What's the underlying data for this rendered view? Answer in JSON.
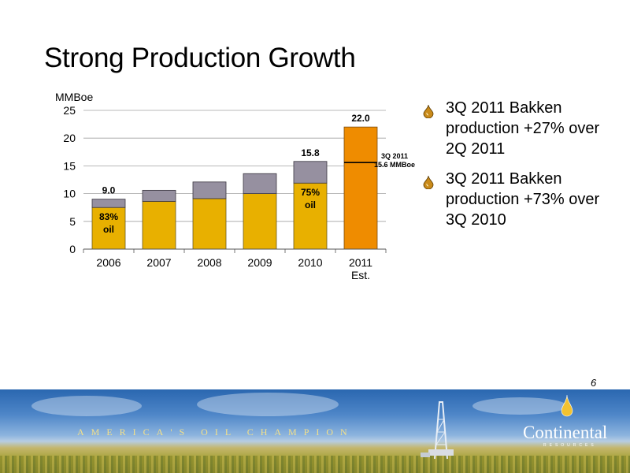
{
  "slide": {
    "title": "Strong Production Growth",
    "page_number": "6"
  },
  "bullets": [
    "3Q 2011 Bakken production +27% over 2Q 2011",
    "3Q 2011 Bakken production +73% over 3Q 2010"
  ],
  "banner": {
    "tagline": "AMERICA'S OIL CHAMPION",
    "logo_name": "Continental",
    "logo_subtitle": "RESOURCES"
  },
  "colors": {
    "oil": "#e8b000",
    "other": "#9690a0",
    "estimate": "#ef8c00",
    "gridline": "#a0a0a0",
    "bullet_drop": "#c98a1a"
  },
  "chart_data": {
    "type": "bar",
    "ylabel": "MMBoe",
    "ylim": [
      0,
      25
    ],
    "yticks": [
      0,
      5,
      10,
      15,
      20,
      25
    ],
    "categories": [
      "2006",
      "2007",
      "2008",
      "2009",
      "2010",
      "2011"
    ],
    "category_sublabels": [
      "",
      "",
      "",
      "",
      "",
      "Est."
    ],
    "grid": true,
    "series": [
      {
        "values": [
          7.5,
          8.6,
          9.1,
          10.0,
          11.9,
          null
        ]
      },
      {
        "values": [
          1.5,
          2.0,
          3.0,
          3.6,
          3.9,
          null
        ]
      }
    ],
    "estimate": {
      "category": "2011",
      "value": 22.0,
      "marker_value": 15.6
    },
    "data_labels": {
      "totals": [
        "9.0",
        "",
        "",
        "",
        "15.8",
        "22.0"
      ],
      "oil_share": [
        "83%\noil",
        "",
        "",
        "",
        "75%\noil",
        ""
      ],
      "marker": "3Q 2011\n15.6 MMBoe"
    }
  }
}
